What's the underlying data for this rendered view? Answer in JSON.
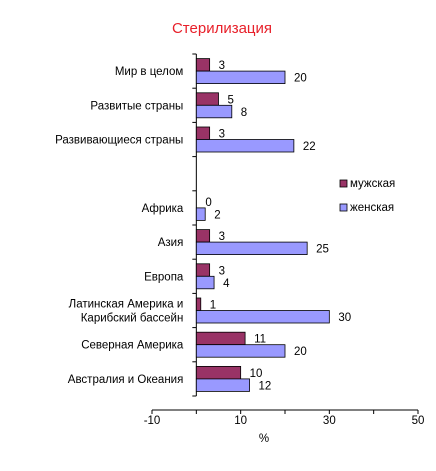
{
  "chart_data": {
    "type": "bar",
    "orientation": "horizontal",
    "title": "Стерилизация",
    "xlabel": "%",
    "xlim": [
      -10,
      50
    ],
    "xticks": [
      "-10",
      "10",
      "30",
      "50"
    ],
    "legend_position": "right",
    "categories": [
      [
        "Мир в целом"
      ],
      [
        "Развитые страны"
      ],
      [
        "Развивающиеся страны"
      ],
      [
        ""
      ],
      [
        "Африка"
      ],
      [
        "Азия"
      ],
      [
        "Европа"
      ],
      [
        "Латинская Америка и",
        "Карибский бассейн"
      ],
      [
        "Северная Америка"
      ],
      [
        "Австралия и Океания"
      ]
    ],
    "series": [
      {
        "name": "мужская",
        "color": "#993366",
        "values": [
          3,
          5,
          3,
          null,
          0,
          3,
          3,
          1,
          11,
          10
        ]
      },
      {
        "name": "женская",
        "color": "#9999ff",
        "values": [
          20,
          8,
          22,
          null,
          2,
          25,
          4,
          30,
          20,
          12
        ]
      }
    ]
  }
}
